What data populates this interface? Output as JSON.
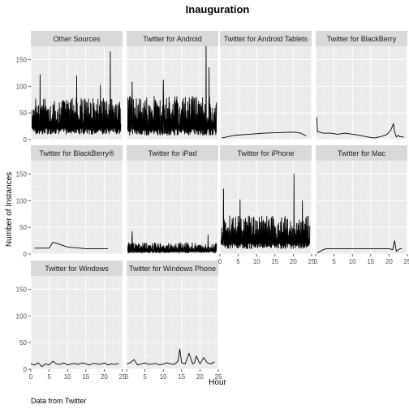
{
  "chart_data": {
    "type": "line",
    "title": "Inauguration",
    "xlabel": "Hour",
    "ylabel": "Number of Instances",
    "caption": "Data from Twitter",
    "xlim": [
      0,
      25
    ],
    "ylim": [
      0,
      175
    ],
    "x_ticks": [
      0,
      5,
      10,
      15,
      20,
      25
    ],
    "y_ticks": [
      0,
      50,
      100,
      150
    ],
    "grid": true,
    "facets": [
      {
        "name": "Other Sources",
        "series": {
          "kind": "dense",
          "x": [
            0.3,
            24.5
          ],
          "range": [
            10,
            165
          ],
          "peaks": [
            [
              2.5,
              122
            ],
            [
              12.5,
              120
            ],
            [
              19,
              102
            ],
            [
              21.7,
              165
            ]
          ]
        }
      },
      {
        "name": "Twitter for Android",
        "series": {
          "kind": "dense",
          "x": [
            0.3,
            24.5
          ],
          "range": [
            8,
            175
          ],
          "peaks": [
            [
              1.5,
              108
            ],
            [
              10,
              112
            ],
            [
              21.7,
              175
            ],
            [
              22.5,
              135
            ]
          ]
        }
      },
      {
        "name": "Twitter for Android Tablets",
        "series": {
          "kind": "line",
          "x": [
            0.5,
            4,
            8,
            12,
            16,
            20,
            22,
            23.5
          ],
          "y": [
            3,
            8,
            10,
            12,
            13,
            14,
            12,
            7
          ]
        }
      },
      {
        "name": "Twitter for BlackBerry",
        "series": {
          "kind": "line",
          "x": [
            0.3,
            0.5,
            2,
            4,
            6,
            8,
            10,
            12,
            14,
            16,
            18,
            19.5,
            20.5,
            21.2,
            21.5,
            22,
            22.5,
            23,
            23.5,
            24
          ],
          "y": [
            42,
            15,
            12,
            12,
            10,
            12,
            10,
            8,
            5,
            3,
            6,
            10,
            18,
            30,
            15,
            5,
            8,
            5,
            6,
            4
          ]
        }
      },
      {
        "name": "Twitter for BlackBerry®",
        "series": {
          "kind": "line",
          "x": [
            1,
            5,
            6,
            7,
            10,
            15,
            20,
            21
          ],
          "y": [
            11,
            11,
            22,
            20,
            13,
            10,
            10,
            10
          ]
        }
      },
      {
        "name": "Twitter for iPad",
        "series": {
          "kind": "dense",
          "x": [
            0.3,
            24.5
          ],
          "range": [
            2,
            45
          ],
          "peaks": [
            [
              1.5,
              42
            ],
            [
              22.2,
              36
            ]
          ]
        }
      },
      {
        "name": "Twitter for iPhone",
        "series": {
          "kind": "dense",
          "x": [
            0.3,
            24.5
          ],
          "range": [
            10,
            150
          ],
          "peaks": [
            [
              1,
              122
            ],
            [
              5.5,
              102
            ],
            [
              20.2,
              150
            ],
            [
              22.5,
              100
            ]
          ]
        }
      },
      {
        "name": "Twitter for Mac",
        "series": {
          "kind": "line",
          "x": [
            0.5,
            2,
            3,
            5,
            8,
            12,
            16,
            19,
            20,
            21,
            21.5,
            22,
            23,
            23.5
          ],
          "y": [
            2,
            8,
            10,
            10,
            10,
            10,
            10,
            10,
            10,
            8,
            25,
            5,
            10,
            10
          ]
        }
      },
      {
        "name": "Twitter for Windows",
        "series": {
          "kind": "line",
          "x": [
            0,
            1,
            2,
            3,
            4,
            5,
            6,
            7,
            8,
            9,
            10,
            11,
            12,
            13,
            14,
            15,
            16,
            17,
            18,
            19,
            20,
            21,
            22,
            23,
            24
          ],
          "y": [
            10,
            8,
            12,
            5,
            10,
            8,
            15,
            10,
            9,
            12,
            8,
            10,
            11,
            9,
            12,
            10,
            8,
            11,
            10,
            9,
            12,
            8,
            10,
            9,
            11
          ]
        }
      },
      {
        "name": "Twitter for Windows Phone",
        "series": {
          "kind": "line",
          "x": [
            0,
            1,
            2,
            3,
            4,
            5,
            6,
            7,
            8,
            9,
            10,
            11,
            12,
            13,
            14,
            14.5,
            15,
            16,
            17,
            18,
            18.5,
            19,
            20,
            21,
            22,
            23,
            24
          ],
          "y": [
            10,
            12,
            18,
            8,
            10,
            12,
            9,
            10,
            11,
            8,
            10,
            12,
            10,
            9,
            15,
            38,
            12,
            10,
            30,
            10,
            12,
            25,
            10,
            22,
            12,
            10,
            14
          ]
        }
      }
    ]
  }
}
